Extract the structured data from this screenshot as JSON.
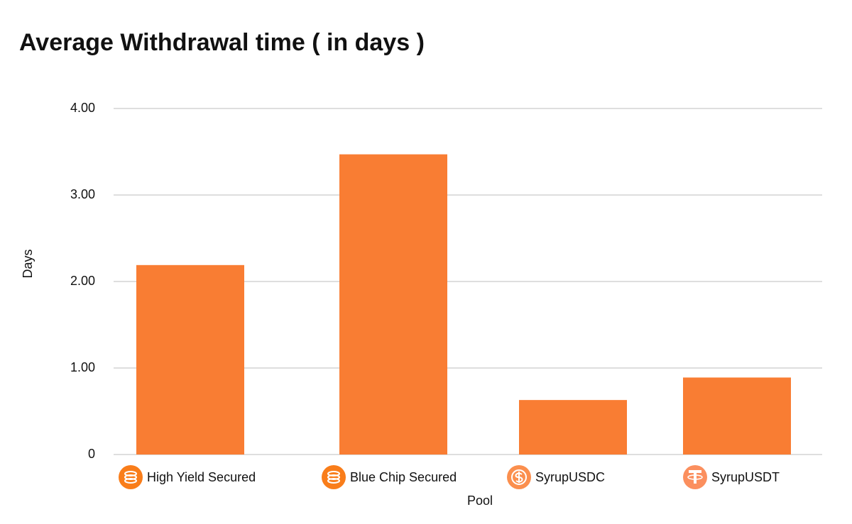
{
  "chart_data": {
    "type": "bar",
    "title": "Average Withdrawal time ( in days )",
    "x_label": "Pool",
    "y_label": "Days",
    "categories": [
      "High Yield Secured",
      "Blue Chip Secured",
      "SyrupUSDC",
      "SyrupUSDT"
    ],
    "values": [
      2.19,
      3.47,
      0.63,
      0.89
    ],
    "color": "#f97d33",
    "ylim": [
      0,
      4
    ],
    "yticks": [
      0,
      {
        "value": 1,
        "label": "1.00"
      },
      {
        "value": 2,
        "label": "2.00"
      },
      {
        "value": 3,
        "label": "3.00"
      },
      {
        "value": 4,
        "label": "4.00"
      }
    ],
    "grid": true
  }
}
